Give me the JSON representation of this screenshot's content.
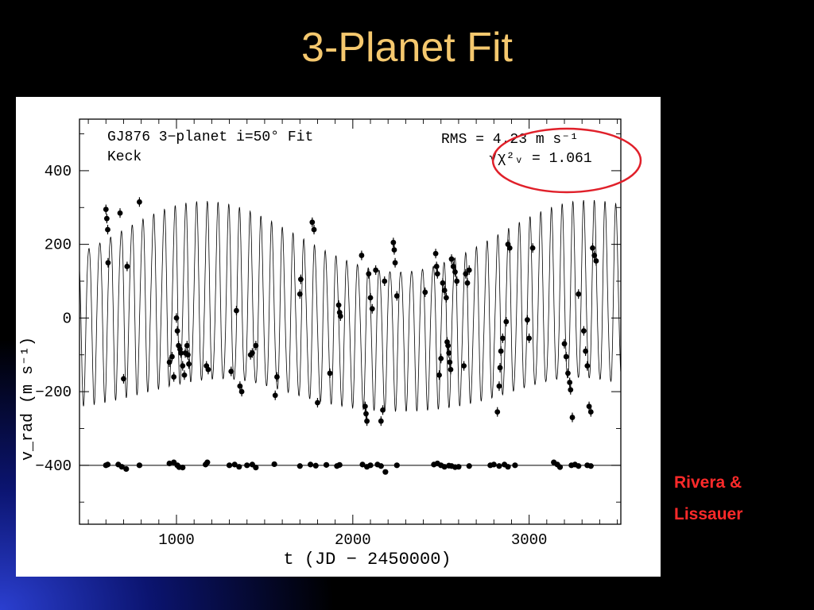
{
  "slide": {
    "title": "3-Planet Fit",
    "credit_line1": "Rivera &",
    "credit_line2": "Lissauer",
    "title_color": "#f5c86e",
    "credit_color": "#ff2a2a",
    "highlight_color": "#e0202a"
  },
  "chart_data": {
    "type": "line",
    "annotation_left": [
      "GJ876 3−planet i=50° Fit",
      "Keck"
    ],
    "annotation_rms": "RMS = 4.23 m s⁻¹",
    "annotation_chi": "√χ²ᵥ = 1.061",
    "xlabel": "t (JD − 2450000)",
    "ylabel": "v_rad (m s⁻¹)",
    "xlim": [
      450,
      3520
    ],
    "ylim": [
      -560,
      540
    ],
    "xticks": [
      1000,
      2000,
      3000
    ],
    "xtick_labels": [
      "1000",
      "2000",
      "3000"
    ],
    "yticks": [
      -400,
      -200,
      0,
      200,
      400
    ],
    "ytick_labels": [
      "−400",
      "−200",
      "0",
      "200",
      "400"
    ],
    "residual_baseline": -400,
    "model_curve": {
      "period_b": 61,
      "amp_b": 215,
      "phase_b": 0,
      "period_c": 30,
      "amp_c": 85,
      "envelope_period": 2280,
      "envelope_amp": 95,
      "envelope_phase_t": 1100,
      "offset": 0
    },
    "series": [
      {
        "values": [
          [
            600,
            295
          ],
          [
            605,
            270
          ],
          [
            610,
            240
          ],
          [
            612,
            150
          ],
          [
            680,
            285
          ],
          [
            700,
            -165
          ],
          [
            720,
            140
          ],
          [
            790,
            315
          ],
          [
            960,
            -120
          ],
          [
            975,
            -105
          ],
          [
            985,
            -160
          ],
          [
            1000,
            0
          ],
          [
            1005,
            -35
          ],
          [
            1012,
            -75
          ],
          [
            1020,
            -85
          ],
          [
            1025,
            -95
          ],
          [
            1035,
            -130
          ],
          [
            1045,
            -155
          ],
          [
            1050,
            -95
          ],
          [
            1060,
            -75
          ],
          [
            1065,
            -100
          ],
          [
            1070,
            -125
          ],
          [
            1170,
            -130
          ],
          [
            1180,
            -140
          ],
          [
            1310,
            -145
          ],
          [
            1340,
            20
          ],
          [
            1360,
            -185
          ],
          [
            1370,
            -200
          ],
          [
            1420,
            -100
          ],
          [
            1430,
            -95
          ],
          [
            1450,
            -75
          ],
          [
            1560,
            -210
          ],
          [
            1570,
            -160
          ],
          [
            1700,
            65
          ],
          [
            1705,
            105
          ],
          [
            1770,
            260
          ],
          [
            1780,
            240
          ],
          [
            1800,
            -230
          ],
          [
            1870,
            -150
          ],
          [
            1920,
            35
          ],
          [
            1925,
            15
          ],
          [
            1930,
            5
          ],
          [
            2050,
            170
          ],
          [
            2070,
            -240
          ],
          [
            2075,
            -260
          ],
          [
            2080,
            -280
          ],
          [
            2090,
            120
          ],
          [
            2100,
            55
          ],
          [
            2110,
            25
          ],
          [
            2130,
            130
          ],
          [
            2160,
            -280
          ],
          [
            2170,
            -250
          ],
          [
            2180,
            100
          ],
          [
            2230,
            205
          ],
          [
            2235,
            185
          ],
          [
            2240,
            150
          ],
          [
            2250,
            60
          ],
          [
            2410,
            70
          ],
          [
            2470,
            175
          ],
          [
            2475,
            140
          ],
          [
            2480,
            120
          ],
          [
            2490,
            -155
          ],
          [
            2500,
            -110
          ],
          [
            2510,
            95
          ],
          [
            2520,
            75
          ],
          [
            2530,
            55
          ],
          [
            2535,
            -65
          ],
          [
            2540,
            -75
          ],
          [
            2545,
            -95
          ],
          [
            2550,
            -120
          ],
          [
            2555,
            -140
          ],
          [
            2560,
            160
          ],
          [
            2570,
            140
          ],
          [
            2580,
            125
          ],
          [
            2590,
            100
          ],
          [
            2630,
            -130
          ],
          [
            2640,
            120
          ],
          [
            2650,
            95
          ],
          [
            2660,
            130
          ],
          [
            2820,
            -255
          ],
          [
            2830,
            -185
          ],
          [
            2835,
            -135
          ],
          [
            2840,
            -90
          ],
          [
            2850,
            -55
          ],
          [
            2870,
            -10
          ],
          [
            2880,
            200
          ],
          [
            2890,
            190
          ],
          [
            2990,
            -5
          ],
          [
            3000,
            -55
          ],
          [
            3020,
            190
          ],
          [
            3200,
            -70
          ],
          [
            3210,
            -105
          ],
          [
            3220,
            -150
          ],
          [
            3230,
            -175
          ],
          [
            3235,
            -195
          ],
          [
            3245,
            -270
          ],
          [
            3280,
            65
          ],
          [
            3310,
            -35
          ],
          [
            3320,
            -90
          ],
          [
            3330,
            -130
          ],
          [
            3340,
            -240
          ],
          [
            3350,
            -255
          ],
          [
            3360,
            190
          ],
          [
            3370,
            170
          ],
          [
            3380,
            155
          ]
        ]
      }
    ],
    "residuals": [
      [
        600,
        -400
      ],
      [
        610,
        -398
      ],
      [
        670,
        -398
      ],
      [
        690,
        -404
      ],
      [
        715,
        -410
      ],
      [
        790,
        -400
      ],
      [
        960,
        -395
      ],
      [
        985,
        -392
      ],
      [
        1005,
        -400
      ],
      [
        1015,
        -405
      ],
      [
        1035,
        -406
      ],
      [
        1165,
        -398
      ],
      [
        1175,
        -392
      ],
      [
        1300,
        -400
      ],
      [
        1330,
        -398
      ],
      [
        1355,
        -404
      ],
      [
        1400,
        -400
      ],
      [
        1430,
        -398
      ],
      [
        1450,
        -406
      ],
      [
        1555,
        -397
      ],
      [
        1700,
        -402
      ],
      [
        1760,
        -398
      ],
      [
        1790,
        -401
      ],
      [
        1850,
        -399
      ],
      [
        1910,
        -402
      ],
      [
        1925,
        -399
      ],
      [
        2055,
        -398
      ],
      [
        2080,
        -404
      ],
      [
        2100,
        -400
      ],
      [
        2140,
        -398
      ],
      [
        2160,
        -402
      ],
      [
        2185,
        -418
      ],
      [
        2250,
        -400
      ],
      [
        2460,
        -398
      ],
      [
        2480,
        -395
      ],
      [
        2500,
        -400
      ],
      [
        2520,
        -404
      ],
      [
        2545,
        -401
      ],
      [
        2560,
        -402
      ],
      [
        2580,
        -405
      ],
      [
        2600,
        -404
      ],
      [
        2660,
        -402
      ],
      [
        2780,
        -400
      ],
      [
        2800,
        -398
      ],
      [
        2830,
        -402
      ],
      [
        2860,
        -398
      ],
      [
        2880,
        -404
      ],
      [
        2920,
        -400
      ],
      [
        3140,
        -392
      ],
      [
        3160,
        -398
      ],
      [
        3175,
        -405
      ],
      [
        3240,
        -400
      ],
      [
        3260,
        -398
      ],
      [
        3280,
        -402
      ],
      [
        3330,
        -400
      ],
      [
        3350,
        -402
      ]
    ]
  }
}
